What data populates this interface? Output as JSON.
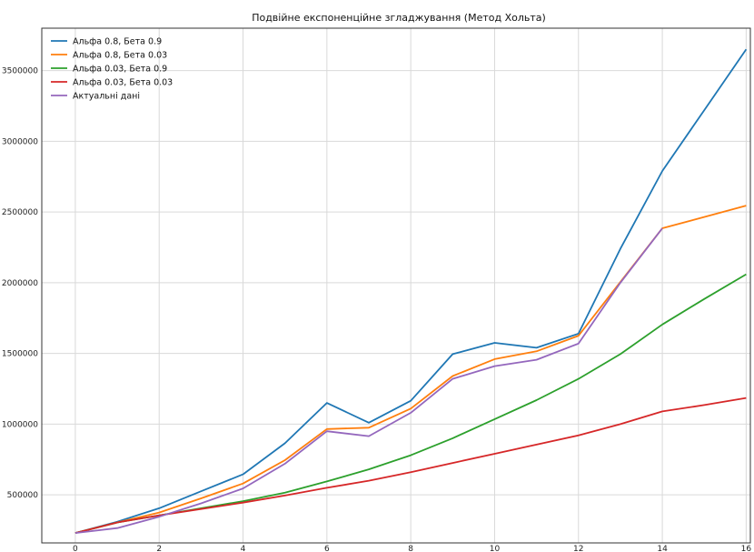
{
  "chart_data": {
    "type": "line",
    "title": "Подвійне експоненційне згладжування (Метод Хольта)",
    "xlabel": "",
    "ylabel": "",
    "xlim": [
      -0.8,
      16.1
    ],
    "ylim": [
      160000,
      3800000
    ],
    "grid": true,
    "legend_position": "top-left",
    "x_ticks": [
      0,
      2,
      4,
      6,
      8,
      10,
      12,
      14,
      16
    ],
    "y_ticks": [
      500000,
      1000000,
      1500000,
      2000000,
      2500000,
      3000000,
      3500000
    ],
    "x": [
      0,
      1,
      2,
      3,
      4,
      5,
      6,
      7,
      8,
      9,
      10,
      11,
      12,
      13,
      14,
      15,
      16
    ],
    "series": [
      {
        "name": "Альфа 0.8, Бета 0.9",
        "color": "#1f77b4",
        "values": [
          230000,
          310000,
          405000,
          525000,
          645000,
          865000,
          1150000,
          1010000,
          1165000,
          1495000,
          1575000,
          1540000,
          1640000,
          2240000,
          2790000,
          3220000,
          3650000
        ]
      },
      {
        "name": "Альфа 0.8, Бета 0.03",
        "color": "#ff7f0e",
        "values": [
          230000,
          305000,
          375000,
          475000,
          580000,
          745000,
          965000,
          975000,
          1110000,
          1340000,
          1460000,
          1515000,
          1625000,
          2005000,
          2385000,
          2465000,
          2545000
        ]
      },
      {
        "name": "Альфа 0.03, Бета 0.9",
        "color": "#2ca02c",
        "values": [
          230000,
          305000,
          355000,
          405000,
          455000,
          515000,
          595000,
          680000,
          780000,
          900000,
          1035000,
          1170000,
          1320000,
          1495000,
          1705000,
          1885000,
          2060000
        ]
      },
      {
        "name": "Альфа 0.03, Бета 0.03",
        "color": "#d62728",
        "values": [
          230000,
          305000,
          355000,
          400000,
          445000,
          495000,
          550000,
          600000,
          660000,
          725000,
          790000,
          855000,
          920000,
          1000000,
          1090000,
          1135000,
          1185000
        ]
      },
      {
        "name": "Актуальні дані",
        "color": "#9467bd",
        "values": [
          230000,
          265000,
          345000,
          440000,
          545000,
          720000,
          950000,
          915000,
          1080000,
          1320000,
          1410000,
          1455000,
          1570000,
          2000000,
          2385000,
          null,
          null
        ]
      }
    ]
  }
}
